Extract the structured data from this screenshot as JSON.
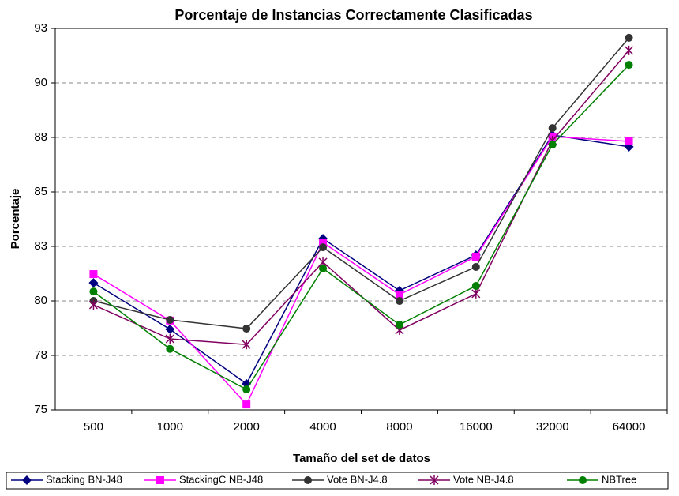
{
  "chart_data": {
    "type": "line",
    "title": "Porcentaje de Instancias Correctamente Clasificadas",
    "x_label": "Tamaño del set de datos",
    "y_label": "Porcentaje",
    "categories": [
      "500",
      "1000",
      "2000",
      "4000",
      "8000",
      "16000",
      "32000",
      "64000"
    ],
    "ylim": [
      75,
      92.5
    ],
    "yticks": [
      75,
      {
        "value": 77.5,
        "label": "78"
      },
      80,
      {
        "value": 82.5,
        "label": "83"
      },
      85,
      {
        "value": 87.5,
        "label": "88"
      },
      90,
      {
        "value": 92.5,
        "label": "93"
      }
    ],
    "grid": true,
    "legend": "bottom",
    "series": [
      {
        "name": "Stacking BN-J48",
        "color": "#000080",
        "marker": "diamond",
        "values": [
          80.83,
          78.7,
          76.2,
          82.86,
          80.47,
          82.1,
          87.61,
          87.07
        ]
      },
      {
        "name": "StackingC NB-J48",
        "color": "#ff00ff",
        "marker": "square",
        "values": [
          81.23,
          79.1,
          75.25,
          82.68,
          80.29,
          82.03,
          87.54,
          87.32
        ]
      },
      {
        "name": "Vote BN-J4.8",
        "color": "#333333",
        "marker": "circle",
        "values": [
          80.0,
          79.13,
          78.73,
          82.46,
          80.0,
          81.56,
          87.93,
          92.07
        ]
      },
      {
        "name": "Vote NB-J4.8",
        "color": "#800060",
        "marker": "star",
        "values": [
          79.82,
          78.26,
          78.0,
          81.78,
          78.66,
          80.33,
          87.36,
          91.49
        ]
      },
      {
        "name": "NBTree",
        "color": "#008000",
        "marker": "circle",
        "values": [
          80.43,
          77.8,
          75.94,
          81.49,
          78.91,
          80.69,
          87.17,
          90.83
        ]
      }
    ]
  }
}
